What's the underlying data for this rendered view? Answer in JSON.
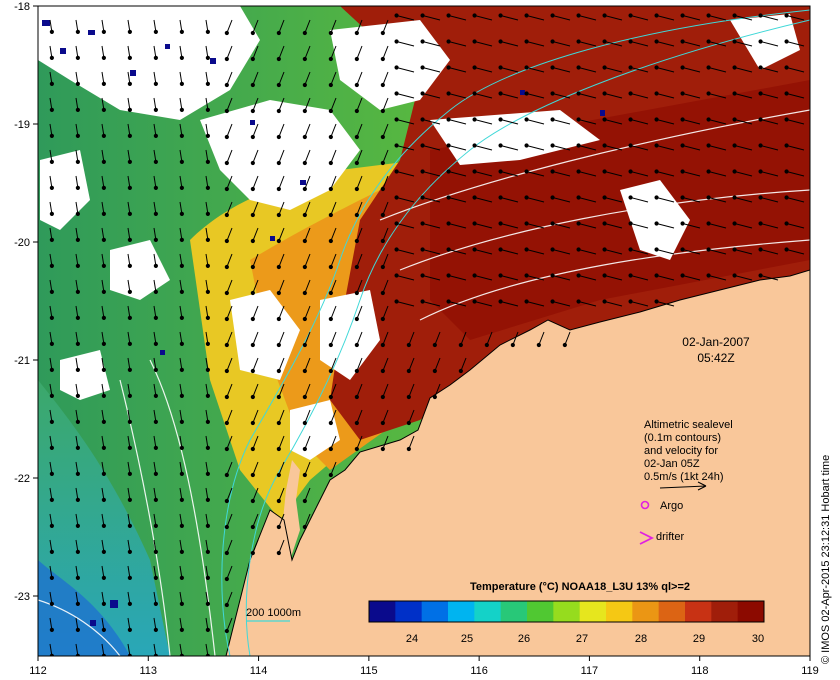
{
  "map": {
    "date": "02-Jan-2007",
    "time": "05:42Z",
    "x_ticks": [
      "112",
      "113",
      "114",
      "115",
      "116",
      "117",
      "118",
      "119"
    ],
    "y_ticks": [
      "-18",
      "-19",
      "-20",
      "-21",
      "-22",
      "-23"
    ]
  },
  "legend": {
    "sealevel_lines": [
      "Altimetric sealevel",
      "(0.1m contours)",
      "and velocity for",
      "02-Jan 05Z",
      "0.5m/s (1kt 24h)"
    ],
    "argo_label": "Argo",
    "drifter_label": "drifter",
    "argo_color": "#e020e0",
    "drifter_color": "#e020e0"
  },
  "bathymetry_label": "200  1000m",
  "colorbar": {
    "title": "Temperature (°C) NOAA18_L3U 13% ql>=2",
    "ticks": [
      "24",
      "25",
      "26",
      "27",
      "28",
      "29",
      "30"
    ],
    "colors": [
      "#0a0a8c",
      "#0030c8",
      "#0070e6",
      "#00b4f0",
      "#14d2c8",
      "#28c878",
      "#50c832",
      "#96dc1e",
      "#e6e61e",
      "#f5c814",
      "#eb9614",
      "#dc6414",
      "#c83214",
      "#a01e0a",
      "#8c0a00"
    ]
  },
  "credit": "© IMOS 02-Apr-2015 23:12:31 Hobart time",
  "colors": {
    "land": "#f9c79a",
    "missing": "#ffffff",
    "warm": "#a01e0a",
    "contour": "#ffffff",
    "bathy_line": "#40d8d8"
  }
}
